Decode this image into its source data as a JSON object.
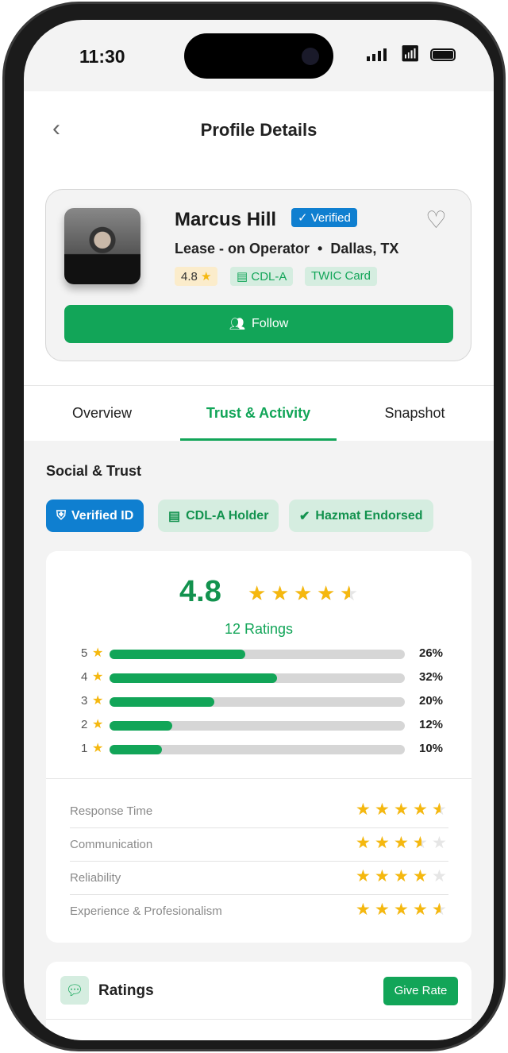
{
  "status": {
    "time": "11:30"
  },
  "header": {
    "title": "Profile Details"
  },
  "profile": {
    "name": "Marcus Hill",
    "verified": "Verified",
    "role": "Lease - on Operator",
    "location": "Dallas, TX",
    "rating": "4.8",
    "chips": [
      "CDL-A",
      "TWIC Card"
    ],
    "follow": "Follow"
  },
  "tabs": [
    {
      "label": "Overview"
    },
    {
      "label": "Trust & Activity",
      "active": true
    },
    {
      "label": "Snapshot"
    }
  ],
  "trust": {
    "title": "Social & Trust",
    "badges": [
      "Verified ID",
      "CDL-A Holder",
      "Hazmat Endorsed"
    ]
  },
  "summary": {
    "average": "4.8",
    "average_stars": 4.5,
    "count": "12 Ratings",
    "distribution": [
      {
        "star": "5",
        "percent": "26%",
        "value": 26
      },
      {
        "star": "4",
        "percent": "32%",
        "value": 32
      },
      {
        "star": "3",
        "percent": "20%",
        "value": 20
      },
      {
        "star": "2",
        "percent": "12%",
        "value": 12
      },
      {
        "star": "1",
        "percent": "10%",
        "value": 10
      }
    ],
    "attributes": [
      {
        "label": "Response Time",
        "stars": 4.5
      },
      {
        "label": "Communication",
        "stars": 3.5
      },
      {
        "label": "Reliability",
        "stars": 4
      },
      {
        "label": "Experience & Profesionalism",
        "stars": 4.5
      }
    ]
  },
  "ratings": {
    "title": "Ratings",
    "give_rate": "Give Rate"
  },
  "colors": {
    "accent": "#12a558",
    "verified": "#0f7fd0",
    "star": "#f5b80f"
  }
}
